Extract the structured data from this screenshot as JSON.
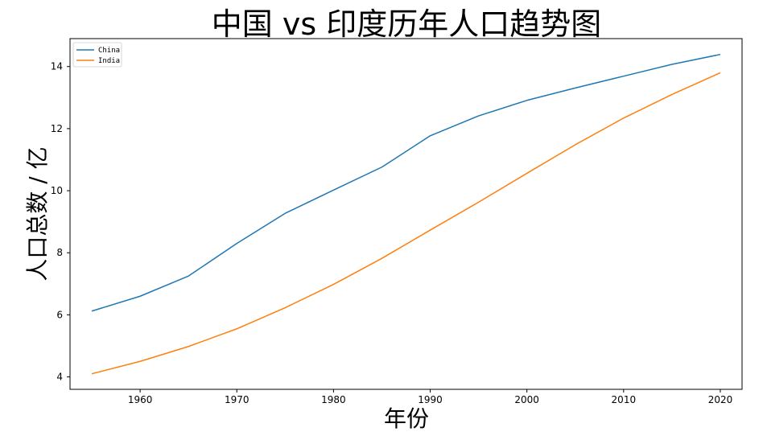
{
  "chart_data": {
    "type": "line",
    "title": "中国 vs 印度历年人口趋势图",
    "xlabel": "年份",
    "ylabel": "人口总数 / 亿",
    "xlim": [
      1952.75,
      2022.25
    ],
    "ylim": [
      3.6,
      14.9
    ],
    "xticks": [
      1960,
      1970,
      1980,
      1990,
      2000,
      2010,
      2020
    ],
    "yticks": [
      4,
      6,
      8,
      10,
      12,
      14
    ],
    "grid": false,
    "legend_position": "top-left",
    "x": [
      1955,
      1960,
      1965,
      1970,
      1975,
      1980,
      1985,
      1990,
      1995,
      2000,
      2005,
      2010,
      2015,
      2020
    ],
    "series": [
      {
        "name": "China",
        "color": "#1f77b4",
        "values": [
          6.12,
          6.6,
          7.25,
          8.3,
          9.27,
          10.02,
          10.76,
          11.77,
          12.41,
          12.91,
          13.31,
          13.69,
          14.07,
          14.39
        ]
      },
      {
        "name": "India",
        "color": "#ff7f0e",
        "values": [
          4.1,
          4.5,
          4.98,
          5.55,
          6.23,
          6.98,
          7.82,
          8.73,
          9.63,
          10.56,
          11.48,
          12.34,
          13.1,
          13.8
        ]
      }
    ]
  }
}
